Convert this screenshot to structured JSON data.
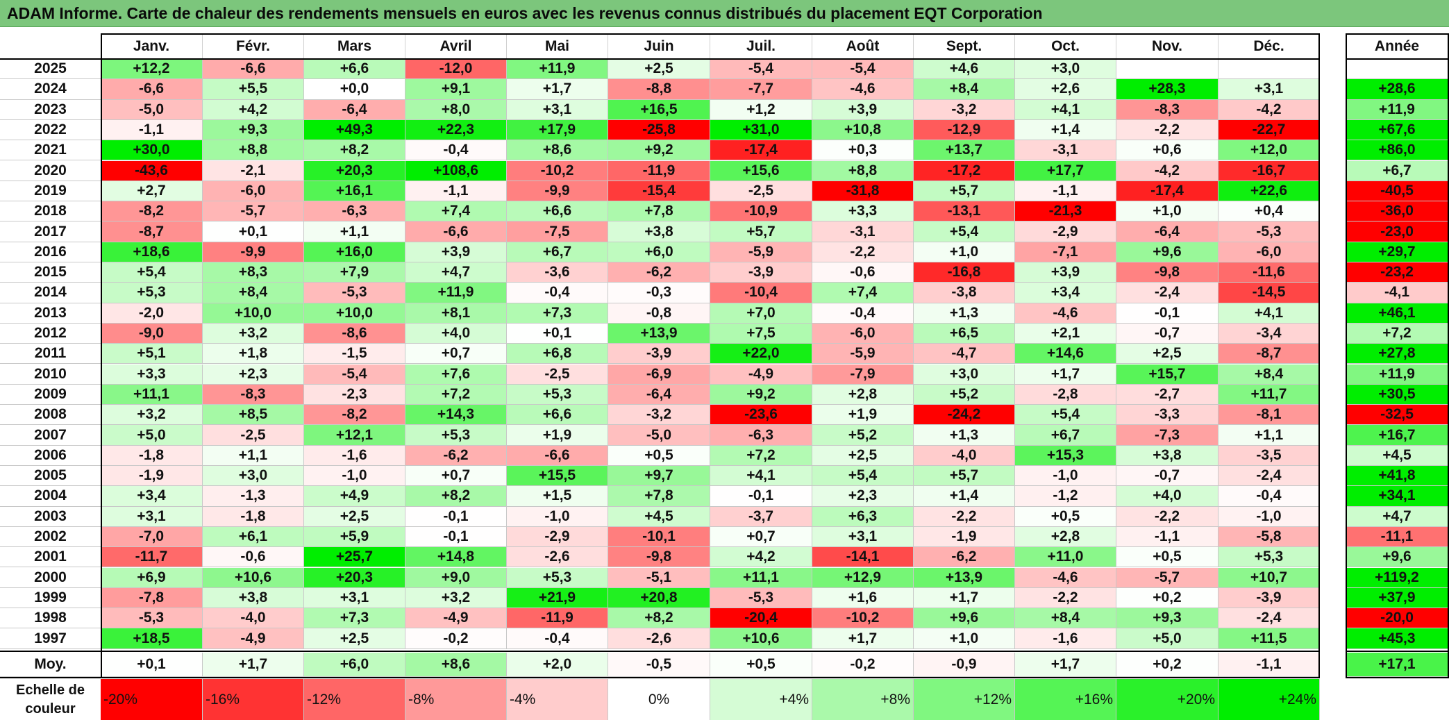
{
  "title": "ADAM Informe. Carte de chaleur des rendements mensuels en euros avec les revenus connus distribués du placement EQT Corporation",
  "chart_data": {
    "type": "heatmap",
    "title": "ADAM Informe. Carte de chaleur des rendements mensuels en euros avec les revenus connus distribués du placement EQT Corporation",
    "columns": [
      "Janv.",
      "Févr.",
      "Mars",
      "Avril",
      "Mai",
      "Juin",
      "Juil.",
      "Août",
      "Sept.",
      "Oct.",
      "Nov.",
      "Déc."
    ],
    "year_column_label": "Année",
    "rows": [
      {
        "year": "2025",
        "values": [
          "+12,2",
          "-6,6",
          "+6,6",
          "-12,0",
          "+11,9",
          "+2,5",
          "-5,4",
          "-5,4",
          "+4,6",
          "+3,0",
          "",
          ""
        ],
        "annual": ""
      },
      {
        "year": "2024",
        "values": [
          "-6,6",
          "+5,5",
          "+0,0",
          "+9,1",
          "+1,7",
          "-8,8",
          "-7,7",
          "-4,6",
          "+8,4",
          "+2,6",
          "+28,3",
          "+3,1"
        ],
        "annual": "+28,6"
      },
      {
        "year": "2023",
        "values": [
          "-5,0",
          "+4,2",
          "-6,4",
          "+8,0",
          "+3,1",
          "+16,5",
          "+1,2",
          "+3,9",
          "-3,2",
          "+4,1",
          "-8,3",
          "-4,2"
        ],
        "annual": "+11,9"
      },
      {
        "year": "2022",
        "values": [
          "-1,1",
          "+9,3",
          "+49,3",
          "+22,3",
          "+17,9",
          "-25,8",
          "+31,0",
          "+10,8",
          "-12,9",
          "+1,4",
          "-2,2",
          "-22,7"
        ],
        "annual": "+67,6"
      },
      {
        "year": "2021",
        "values": [
          "+30,0",
          "+8,8",
          "+8,2",
          "-0,4",
          "+8,6",
          "+9,2",
          "-17,4",
          "+0,3",
          "+13,7",
          "-3,1",
          "+0,6",
          "+12,0"
        ],
        "annual": "+86,0"
      },
      {
        "year": "2020",
        "values": [
          "-43,6",
          "-2,1",
          "+20,3",
          "+108,6",
          "-10,2",
          "-11,9",
          "+15,6",
          "+8,8",
          "-17,2",
          "+17,7",
          "-4,2",
          "-16,7"
        ],
        "annual": "+6,7"
      },
      {
        "year": "2019",
        "values": [
          "+2,7",
          "-6,0",
          "+16,1",
          "-1,1",
          "-9,9",
          "-15,4",
          "-2,5",
          "-31,8",
          "+5,7",
          "-1,1",
          "-17,4",
          "+22,6"
        ],
        "annual": "-40,5"
      },
      {
        "year": "2018",
        "values": [
          "-8,2",
          "-5,7",
          "-6,3",
          "+7,4",
          "+6,6",
          "+7,8",
          "-10,9",
          "+3,3",
          "-13,1",
          "-21,3",
          "+1,0",
          "+0,4"
        ],
        "annual": "-36,0"
      },
      {
        "year": "2017",
        "values": [
          "-8,7",
          "+0,1",
          "+1,1",
          "-6,6",
          "-7,5",
          "+3,8",
          "+5,7",
          "-3,1",
          "+5,4",
          "-2,9",
          "-6,4",
          "-5,3"
        ],
        "annual": "-23,0"
      },
      {
        "year": "2016",
        "values": [
          "+18,6",
          "-9,9",
          "+16,0",
          "+3,9",
          "+6,7",
          "+6,0",
          "-5,9",
          "-2,2",
          "+1,0",
          "-7,1",
          "+9,6",
          "-6,0"
        ],
        "annual": "+29,7"
      },
      {
        "year": "2015",
        "values": [
          "+5,4",
          "+8,3",
          "+7,9",
          "+4,7",
          "-3,6",
          "-6,2",
          "-3,9",
          "-0,6",
          "-16,8",
          "+3,9",
          "-9,8",
          "-11,6"
        ],
        "annual": "-23,2"
      },
      {
        "year": "2014",
        "values": [
          "+5,3",
          "+8,4",
          "-5,3",
          "+11,9",
          "-0,4",
          "-0,3",
          "-10,4",
          "+7,4",
          "-3,8",
          "+3,4",
          "-2,4",
          "-14,5"
        ],
        "annual": "-4,1"
      },
      {
        "year": "2013",
        "values": [
          "-2,0",
          "+10,0",
          "+10,0",
          "+8,1",
          "+7,3",
          "-0,8",
          "+7,0",
          "-0,4",
          "+1,3",
          "-4,6",
          "-0,1",
          "+4,1"
        ],
        "annual": "+46,1"
      },
      {
        "year": "2012",
        "values": [
          "-9,0",
          "+3,2",
          "-8,6",
          "+4,0",
          "+0,1",
          "+13,9",
          "+7,5",
          "-6,0",
          "+6,5",
          "+2,1",
          "-0,7",
          "-3,4"
        ],
        "annual": "+7,2"
      },
      {
        "year": "2011",
        "values": [
          "+5,1",
          "+1,8",
          "-1,5",
          "+0,7",
          "+6,8",
          "-3,9",
          "+22,0",
          "-5,9",
          "-4,7",
          "+14,6",
          "+2,5",
          "-8,7"
        ],
        "annual": "+27,8"
      },
      {
        "year": "2010",
        "values": [
          "+3,3",
          "+2,3",
          "-5,4",
          "+7,6",
          "-2,5",
          "-6,9",
          "-4,9",
          "-7,9",
          "+3,0",
          "+1,7",
          "+15,7",
          "+8,4"
        ],
        "annual": "+11,9"
      },
      {
        "year": "2009",
        "values": [
          "+11,1",
          "-8,3",
          "-2,3",
          "+7,2",
          "+5,3",
          "-6,4",
          "+9,2",
          "+2,8",
          "+5,2",
          "-2,8",
          "-2,7",
          "+11,7"
        ],
        "annual": "+30,5"
      },
      {
        "year": "2008",
        "values": [
          "+3,2",
          "+8,5",
          "-8,2",
          "+14,3",
          "+6,6",
          "-3,2",
          "-23,6",
          "+1,9",
          "-24,2",
          "+5,4",
          "-3,3",
          "-8,1"
        ],
        "annual": "-32,5"
      },
      {
        "year": "2007",
        "values": [
          "+5,0",
          "-2,5",
          "+12,1",
          "+5,3",
          "+1,9",
          "-5,0",
          "-6,3",
          "+5,2",
          "+1,3",
          "+6,7",
          "-7,3",
          "+1,1"
        ],
        "annual": "+16,7"
      },
      {
        "year": "2006",
        "values": [
          "-1,8",
          "+1,1",
          "-1,6",
          "-6,2",
          "-6,6",
          "+0,5",
          "+7,2",
          "+2,5",
          "-4,0",
          "+15,3",
          "+3,8",
          "-3,5"
        ],
        "annual": "+4,5"
      },
      {
        "year": "2005",
        "values": [
          "-1,9",
          "+3,0",
          "-1,0",
          "+0,7",
          "+15,5",
          "+9,7",
          "+4,1",
          "+5,4",
          "+5,7",
          "-1,0",
          "-0,7",
          "-2,4"
        ],
        "annual": "+41,8"
      },
      {
        "year": "2004",
        "values": [
          "+3,4",
          "-1,3",
          "+4,9",
          "+8,2",
          "+1,5",
          "+7,8",
          "-0,1",
          "+2,3",
          "+1,4",
          "-1,2",
          "+4,0",
          "-0,4"
        ],
        "annual": "+34,1"
      },
      {
        "year": "2003",
        "values": [
          "+3,1",
          "-1,8",
          "+2,5",
          "-0,1",
          "-1,0",
          "+4,5",
          "-3,7",
          "+6,3",
          "-2,2",
          "+0,5",
          "-2,2",
          "-1,0"
        ],
        "annual": "+4,7"
      },
      {
        "year": "2002",
        "values": [
          "-7,0",
          "+6,1",
          "+5,9",
          "-0,1",
          "-2,9",
          "-10,1",
          "+0,7",
          "+3,1",
          "-1,9",
          "+2,8",
          "-1,1",
          "-5,8"
        ],
        "annual": "-11,1"
      },
      {
        "year": "2001",
        "values": [
          "-11,7",
          "-0,6",
          "+25,7",
          "+14,8",
          "-2,6",
          "-9,8",
          "+4,2",
          "-14,1",
          "-6,2",
          "+11,0",
          "+0,5",
          "+5,3"
        ],
        "annual": "+9,6"
      },
      {
        "year": "2000",
        "values": [
          "+6,9",
          "+10,6",
          "+20,3",
          "+9,0",
          "+5,3",
          "-5,1",
          "+11,1",
          "+12,9",
          "+13,9",
          "-4,6",
          "-5,7",
          "+10,7"
        ],
        "annual": "+119,2"
      },
      {
        "year": "1999",
        "values": [
          "-7,8",
          "+3,8",
          "+3,1",
          "+3,2",
          "+21,9",
          "+20,8",
          "-5,3",
          "+1,6",
          "+1,7",
          "-2,2",
          "+0,2",
          "-3,9"
        ],
        "annual": "+37,9"
      },
      {
        "year": "1998",
        "values": [
          "-5,3",
          "-4,0",
          "+7,3",
          "-4,9",
          "-11,9",
          "+8,2",
          "-20,4",
          "-10,2",
          "+9,6",
          "+8,4",
          "+9,3",
          "-2,4"
        ],
        "annual": "-20,0"
      },
      {
        "year": "1997",
        "values": [
          "+18,5",
          "-4,9",
          "+2,5",
          "-0,2",
          "-0,4",
          "-2,6",
          "+10,6",
          "+1,7",
          "+1,0",
          "-1,6",
          "+5,0",
          "+11,5"
        ],
        "annual": "+45,3"
      }
    ],
    "average": {
      "label": "Moy.",
      "values": [
        "+0,1",
        "+1,7",
        "+6,0",
        "+8,6",
        "+2,0",
        "-0,5",
        "+0,5",
        "-0,2",
        "-0,9",
        "+1,7",
        "+0,2",
        "-1,1"
      ],
      "annual": "+17,1"
    },
    "scale": {
      "label": "Echelle de couleur",
      "steps": [
        "-20%",
        "-16%",
        "-12%",
        "-8%",
        "-4%",
        "0%",
        "+4%",
        "+8%",
        "+12%",
        "+16%",
        "+20%",
        "+24%"
      ]
    },
    "colors": {
      "title_bg": "#7cc67c",
      "negative_max": "#ff0000",
      "neutral": "#ffffff",
      "positive_max": "#00ee00"
    }
  }
}
